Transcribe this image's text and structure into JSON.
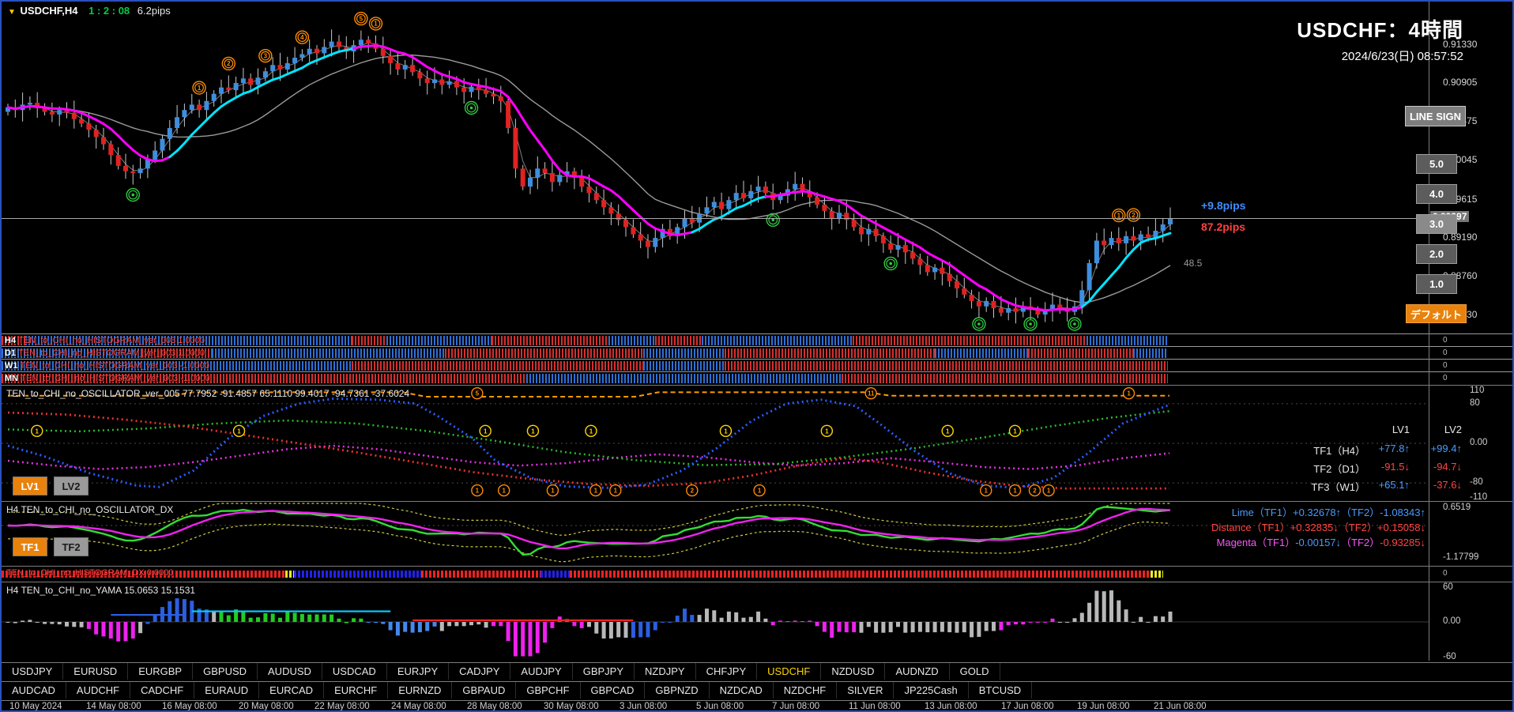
{
  "header": {
    "symbol_info": {
      "collapse_icon": "▼",
      "symbol": "USDCHF,H4",
      "ratio": "1 : 2 : 08",
      "pips": "6.2pips"
    },
    "title": "USDCHF：4時間",
    "datetime": "2024/6/23(日) 08:57:52"
  },
  "right_buttons": {
    "line_sign": "LINE SIGN",
    "levels": [
      "5.0",
      "4.0",
      "3.0",
      "2.0",
      "1.0"
    ],
    "selected_level": "3.0",
    "default_button": "デフォルト"
  },
  "main_chart": {
    "price_axis": [
      "0.91330",
      "0.90905",
      "0.90475",
      "0.90045",
      "0.89615",
      "0.89190",
      "0.88760",
      "0.88330"
    ],
    "current_price": "0.89397",
    "annotations": {
      "pips_up": "+9.8pips",
      "pips_total": "87.2pips",
      "ma_value": "48.5"
    },
    "colors": {
      "bull": "#3e8ede",
      "bear": "#e02222",
      "ma_up": "#00e5ff",
      "ma_down": "#ff00ff",
      "ma_slow": "#9a9a9a",
      "wick": "#c8c8c8"
    }
  },
  "chart_data": {
    "type": "candlestick",
    "symbol": "USDCHF",
    "timeframe": "H4",
    "title": "USDCHF：4時間",
    "price_axis_values": [
      0.9133,
      0.90905,
      0.90475,
      0.90045,
      0.89615,
      0.8919,
      0.8876,
      0.8833
    ],
    "current_price": 0.89397,
    "open_first": 0.9058,
    "closes": [
      0.9063,
      0.906,
      0.9066,
      0.9068,
      0.9062,
      0.9058,
      0.9055,
      0.906,
      0.9057,
      0.905,
      0.9045,
      0.9038,
      0.903,
      0.9022,
      0.901,
      0.8998,
      0.8992,
      0.899,
      0.8995,
      0.9005,
      0.9015,
      0.9028,
      0.904,
      0.9052,
      0.906,
      0.9066,
      0.906,
      0.907,
      0.9078,
      0.9085,
      0.9082,
      0.909,
      0.9095,
      0.9088,
      0.9096,
      0.9103,
      0.911,
      0.9105,
      0.9112,
      0.9118,
      0.9122,
      0.9128,
      0.9123,
      0.913,
      0.9136,
      0.913,
      0.9125,
      0.9132,
      0.9138,
      0.9134,
      0.9128,
      0.912,
      0.9112,
      0.9105,
      0.911,
      0.9102,
      0.9095,
      0.909,
      0.9094,
      0.9088,
      0.9092,
      0.9085,
      0.908,
      0.9086,
      0.9082,
      0.9078,
      0.9075,
      0.907,
      0.904,
      0.8995,
      0.8975,
      0.8985,
      0.8995,
      0.899,
      0.898,
      0.8988,
      0.8992,
      0.8985,
      0.8975,
      0.8968,
      0.896,
      0.8952,
      0.8945,
      0.8938,
      0.893,
      0.8922,
      0.8915,
      0.8908,
      0.8918,
      0.8928,
      0.892,
      0.893,
      0.894,
      0.8935,
      0.8945,
      0.8952,
      0.8958,
      0.895,
      0.896,
      0.8968,
      0.8962,
      0.897,
      0.8975,
      0.8968,
      0.896,
      0.8965,
      0.8972,
      0.8978,
      0.897,
      0.8963,
      0.8955,
      0.8948,
      0.894,
      0.8946,
      0.8938,
      0.893,
      0.8922,
      0.8928,
      0.892,
      0.8912,
      0.8905,
      0.891,
      0.8902,
      0.8895,
      0.8888,
      0.888,
      0.8885,
      0.8878,
      0.887,
      0.8862,
      0.8855,
      0.8848,
      0.8842,
      0.8848,
      0.884,
      0.8835,
      0.884,
      0.8836,
      0.8842,
      0.8838,
      0.8833,
      0.8838,
      0.8844,
      0.884,
      0.8836,
      0.8842,
      0.886,
      0.889,
      0.8915,
      0.891,
      0.8918,
      0.8912,
      0.892,
      0.8915,
      0.8922,
      0.8918,
      0.8926,
      0.8933,
      0.894
    ],
    "time_labels": [
      "10 May 2024",
      "14 May 08:00",
      "16 May 08:00",
      "20 May 08:00",
      "22 May 08:00",
      "24 May 08:00",
      "28 May 08:00",
      "30 May 08:00",
      "3 Jun 08:00",
      "5 Jun 08:00",
      "7 Jun 08:00",
      "11 Jun 08:00",
      "13 Jun 08:00",
      "17 Jun 08:00",
      "19 Jun 08:00",
      "21 Jun 08:00"
    ]
  },
  "chart_markers": {
    "orange": [
      {
        "i": 26,
        "label": "1"
      },
      {
        "i": 30,
        "label": "2"
      },
      {
        "i": 35,
        "label": "3"
      },
      {
        "i": 40,
        "label": "4"
      },
      {
        "i": 48,
        "label": "5"
      },
      {
        "i": 50,
        "label": "1"
      },
      {
        "i": 151,
        "label": "1"
      },
      {
        "i": 153,
        "label": "2"
      }
    ],
    "green": [
      17,
      63,
      104,
      120,
      132,
      139,
      145
    ]
  },
  "hist_rows": {
    "colors": {
      "b": "#2f6fd6",
      "r": "#d62f2f"
    },
    "axis_value": "0",
    "rows": [
      {
        "tf": "H4",
        "name": "TEN_to_CHI_no_HISTOGRAM_ver_003",
        "value": "1.0000",
        "segments": [
          [
            0,
            0.02,
            "r"
          ],
          [
            0.02,
            0.3,
            "b"
          ],
          [
            0.3,
            0.33,
            "r"
          ],
          [
            0.33,
            0.42,
            "b"
          ],
          [
            0.42,
            0.52,
            "r"
          ],
          [
            0.52,
            0.56,
            "b"
          ],
          [
            0.56,
            0.6,
            "r"
          ],
          [
            0.6,
            0.73,
            "b"
          ],
          [
            0.73,
            0.93,
            "r"
          ],
          [
            0.93,
            1,
            "b"
          ]
        ]
      },
      {
        "tf": "D1",
        "name": "TEN_to_CHI_no_HISTOGRAM_ver_003",
        "value": "1.0000",
        "segments": [
          [
            0,
            0.12,
            "b"
          ],
          [
            0.12,
            0.18,
            "r"
          ],
          [
            0.18,
            0.38,
            "b"
          ],
          [
            0.38,
            0.55,
            "r"
          ],
          [
            0.55,
            0.62,
            "b"
          ],
          [
            0.62,
            0.8,
            "r"
          ],
          [
            0.8,
            0.88,
            "b"
          ],
          [
            0.88,
            0.97,
            "r"
          ],
          [
            0.97,
            1,
            "b"
          ]
        ]
      },
      {
        "tf": "W1",
        "name": "TEN_to_CHI_no_HISTOGRAM_ver_003",
        "value": "-1.0000",
        "segments": [
          [
            0,
            0.3,
            "b"
          ],
          [
            0.3,
            0.55,
            "r"
          ],
          [
            0.55,
            0.62,
            "b"
          ],
          [
            0.62,
            1,
            "r"
          ]
        ]
      },
      {
        "tf": "MN",
        "name": "TEN_to_CHI_no_HISTOGRAM_ver_003",
        "value": "-1.0000",
        "segments": [
          [
            0,
            0.45,
            "r"
          ],
          [
            0.45,
            0.72,
            "b"
          ],
          [
            0.72,
            1,
            "r"
          ]
        ]
      }
    ]
  },
  "oscillator": {
    "label": "TEN_to_CHI_no_OSCILLATOR_ver_005 77.7952 -91.4857 65.1110 99.4017 -94.7361 -37.6024",
    "buttons": [
      "LV1",
      "LV2"
    ],
    "axis": [
      "110",
      "80",
      "0.00",
      "-80",
      "-110"
    ],
    "axis_values": [
      110,
      80,
      0,
      -80,
      -110
    ],
    "info": {
      "col1": "LV1",
      "col2": "LV2",
      "rows": [
        {
          "name": "TF1（H4）",
          "lv1": "+77.8↑",
          "lv2": "+99.4↑",
          "c1": "#4a9aff",
          "c2": "#4a9aff"
        },
        {
          "name": "TF2（D1）",
          "lv1": "-91.5↓",
          "lv2": "-94.7↓",
          "c1": "#ff4545",
          "c2": "#ff4545"
        },
        {
          "name": "TF3（W1）",
          "lv1": "+65.1↑",
          "lv2": "-37.6↓",
          "c1": "#4a9aff",
          "c2": "#ff4545"
        }
      ]
    },
    "series": {
      "band": {
        "color": "#ff9900",
        "points": [
          [
            0,
            96
          ],
          [
            0.14,
            96
          ],
          [
            0.16,
            103
          ],
          [
            0.34,
            103
          ],
          [
            0.36,
            94
          ],
          [
            0.54,
            94
          ],
          [
            0.56,
            103
          ],
          [
            0.74,
            103
          ],
          [
            0.76,
            96
          ],
          [
            1,
            96
          ]
        ]
      },
      "mag": {
        "color": "#e832e8",
        "points": [
          [
            0,
            -35
          ],
          [
            0.04,
            -45
          ],
          [
            0.08,
            -52
          ],
          [
            0.12,
            -48
          ],
          [
            0.16,
            -38
          ],
          [
            0.2,
            -25
          ],
          [
            0.24,
            -12
          ],
          [
            0.28,
            -5
          ],
          [
            0.32,
            -12
          ],
          [
            0.36,
            -25
          ],
          [
            0.4,
            -38
          ],
          [
            0.44,
            -45
          ],
          [
            0.48,
            -40
          ],
          [
            0.52,
            -30
          ],
          [
            0.56,
            -22
          ],
          [
            0.6,
            -28
          ],
          [
            0.64,
            -38
          ],
          [
            0.68,
            -45
          ],
          [
            0.72,
            -40
          ],
          [
            0.76,
            -30
          ],
          [
            0.8,
            -38
          ],
          [
            0.84,
            -48
          ],
          [
            0.88,
            -52
          ],
          [
            0.92,
            -45
          ],
          [
            0.96,
            -30
          ],
          [
            1,
            -20
          ]
        ]
      },
      "tf3": {
        "color": "#2db82d",
        "points": [
          [
            0,
            28
          ],
          [
            0.06,
            24
          ],
          [
            0.12,
            30
          ],
          [
            0.18,
            40
          ],
          [
            0.24,
            46
          ],
          [
            0.3,
            40
          ],
          [
            0.36,
            25
          ],
          [
            0.42,
            5
          ],
          [
            0.48,
            -18
          ],
          [
            0.54,
            -34
          ],
          [
            0.6,
            -44
          ],
          [
            0.66,
            -42
          ],
          [
            0.72,
            -28
          ],
          [
            0.78,
            -10
          ],
          [
            0.84,
            12
          ],
          [
            0.9,
            35
          ],
          [
            0.95,
            52
          ],
          [
            1,
            65
          ]
        ]
      },
      "tf2": {
        "color": "#e83030",
        "points": [
          [
            0,
            62
          ],
          [
            0.05,
            58
          ],
          [
            0.1,
            48
          ],
          [
            0.15,
            35
          ],
          [
            0.2,
            18
          ],
          [
            0.25,
            0
          ],
          [
            0.3,
            -18
          ],
          [
            0.35,
            -38
          ],
          [
            0.4,
            -58
          ],
          [
            0.45,
            -72
          ],
          [
            0.5,
            -82
          ],
          [
            0.55,
            -86
          ],
          [
            0.6,
            -80
          ],
          [
            0.64,
            -65
          ],
          [
            0.68,
            -45
          ],
          [
            0.72,
            -30
          ],
          [
            0.75,
            -38
          ],
          [
            0.79,
            -58
          ],
          [
            0.83,
            -75
          ],
          [
            0.87,
            -86
          ],
          [
            0.91,
            -91
          ],
          [
            1,
            -91
          ]
        ]
      },
      "tf1": {
        "color": "#2a5cff",
        "points": [
          [
            0,
            -5
          ],
          [
            0.03,
            -25
          ],
          [
            0.07,
            -60
          ],
          [
            0.11,
            -85
          ],
          [
            0.13,
            -88
          ],
          [
            0.16,
            -55
          ],
          [
            0.19,
            10
          ],
          [
            0.22,
            55
          ],
          [
            0.25,
            80
          ],
          [
            0.28,
            90
          ],
          [
            0.32,
            88
          ],
          [
            0.35,
            80
          ],
          [
            0.37,
            55
          ],
          [
            0.4,
            10
          ],
          [
            0.42,
            -35
          ],
          [
            0.45,
            -70
          ],
          [
            0.48,
            -87
          ],
          [
            0.52,
            -90
          ],
          [
            0.55,
            -83
          ],
          [
            0.58,
            -55
          ],
          [
            0.61,
            -10
          ],
          [
            0.64,
            45
          ],
          [
            0.67,
            80
          ],
          [
            0.7,
            88
          ],
          [
            0.73,
            75
          ],
          [
            0.75,
            40
          ],
          [
            0.78,
            -15
          ],
          [
            0.81,
            -60
          ],
          [
            0.84,
            -85
          ],
          [
            0.87,
            -90
          ],
          [
            0.9,
            -70
          ],
          [
            0.93,
            -20
          ],
          [
            0.96,
            40
          ],
          [
            1,
            78
          ]
        ]
      }
    },
    "markers": {
      "yellow_mid": [
        0.025,
        0.199,
        0.411,
        0.452,
        0.502,
        0.618,
        0.705,
        0.809,
        0.867
      ],
      "orange_bottom": [
        [
          0.404,
          "1"
        ],
        [
          0.427,
          "1"
        ],
        [
          0.469,
          "1"
        ],
        [
          0.506,
          "1"
        ],
        [
          0.523,
          "1"
        ],
        [
          0.589,
          "2"
        ],
        [
          0.647,
          "1"
        ],
        [
          0.842,
          "1"
        ],
        [
          0.867,
          "1"
        ],
        [
          0.884,
          "2"
        ],
        [
          0.896,
          "1"
        ]
      ],
      "orange_top": [
        [
          0.404,
          "5"
        ],
        [
          0.743,
          "11"
        ],
        [
          0.965,
          "1"
        ]
      ]
    }
  },
  "oscillator_dx": {
    "label": "H4 TEN_to_CHI_no_OSCILLATOR_DX",
    "buttons": [
      "TF1",
      "TF2"
    ],
    "axis_top": "0.6519",
    "axis_bottom": "-1.17799",
    "colors": {
      "lime": "#33dd33",
      "magenta": "#ee22ee",
      "band": "#cccc44"
    },
    "info_lines": [
      {
        "segments": [
          {
            "t": "Lime（TF1）+0.32678↑（TF2）-1.08343↑",
            "c": "#4a9aff"
          }
        ]
      },
      {
        "segments": [
          {
            "t": "Distance（TF1）+0.32835↓（TF2）+0.15058↓",
            "c": "#ff4545"
          }
        ]
      },
      {
        "segments": [
          {
            "t": "Magenta（TF1）",
            "c": "#ff55ff"
          },
          {
            "t": "-0.00157↓",
            "c": "#4a9aff"
          },
          {
            "t": "（TF2）",
            "c": "#ff55ff"
          },
          {
            "t": "-0.93285↓",
            "c": "#ff4545"
          }
        ]
      }
    ]
  },
  "hist_dx": {
    "label": "TEN_to_CHI_no_HISTOGRAM_DX 0.0000",
    "colors": {
      "b": "#2222ee",
      "r": "#ee2222",
      "y": "#eeee22"
    },
    "segments": [
      [
        0,
        0.243,
        "r"
      ],
      [
        0.243,
        0.251,
        "y"
      ],
      [
        0.251,
        0.36,
        "b"
      ],
      [
        0.36,
        0.462,
        "r"
      ],
      [
        0.462,
        0.487,
        "b"
      ],
      [
        0.487,
        0.985,
        "r"
      ],
      [
        0.985,
        0.996,
        "y"
      ]
    ]
  },
  "yama": {
    "label": "H4  TEN_to_CHI_no_YAMA  15.0653 15.1531",
    "axis": [
      "60",
      "0.00",
      "-60"
    ],
    "axis_values": [
      60,
      0,
      -60
    ],
    "default_color": "#b8b8b8",
    "overrides": [
      [
        11,
        17,
        "#ee22ee"
      ],
      [
        19,
        27,
        "#2b5fe0"
      ],
      [
        29,
        48,
        "#22cc22"
      ],
      [
        49,
        58,
        "#4488ee"
      ],
      [
        66,
        78,
        "#ee22ee"
      ],
      [
        85,
        93,
        "#2b5fe0"
      ],
      [
        104,
        115,
        "#ee22ee"
      ],
      [
        135,
        142,
        "#ee22ee"
      ]
    ],
    "strips": [
      [
        14,
        24,
        12,
        "#2b5fe0"
      ],
      [
        25,
        52,
        18,
        "#00ccff"
      ],
      [
        55,
        85,
        3,
        "#ee2222"
      ]
    ]
  },
  "symbols": {
    "active": "USDCHF",
    "active_color": "#ffd700",
    "row1": [
      "USDJPY",
      "EURUSD",
      "EURGBP",
      "GBPUSD",
      "AUDUSD",
      "USDCAD",
      "EURJPY",
      "CADJPY",
      "AUDJPY",
      "GBPJPY",
      "NZDJPY",
      "CHFJPY",
      "USDCHF",
      "NZDUSD",
      "AUDNZD",
      "GOLD"
    ],
    "row2": [
      "AUDCAD",
      "AUDCHF",
      "CADCHF",
      "EURAUD",
      "EURCAD",
      "EURCHF",
      "EURNZD",
      "GBPAUD",
      "GBPCHF",
      "GBPCAD",
      "GBPNZD",
      "NZDCAD",
      "NZDCHF",
      "SILVER",
      "JP225Cash",
      "BTCUSD"
    ]
  }
}
